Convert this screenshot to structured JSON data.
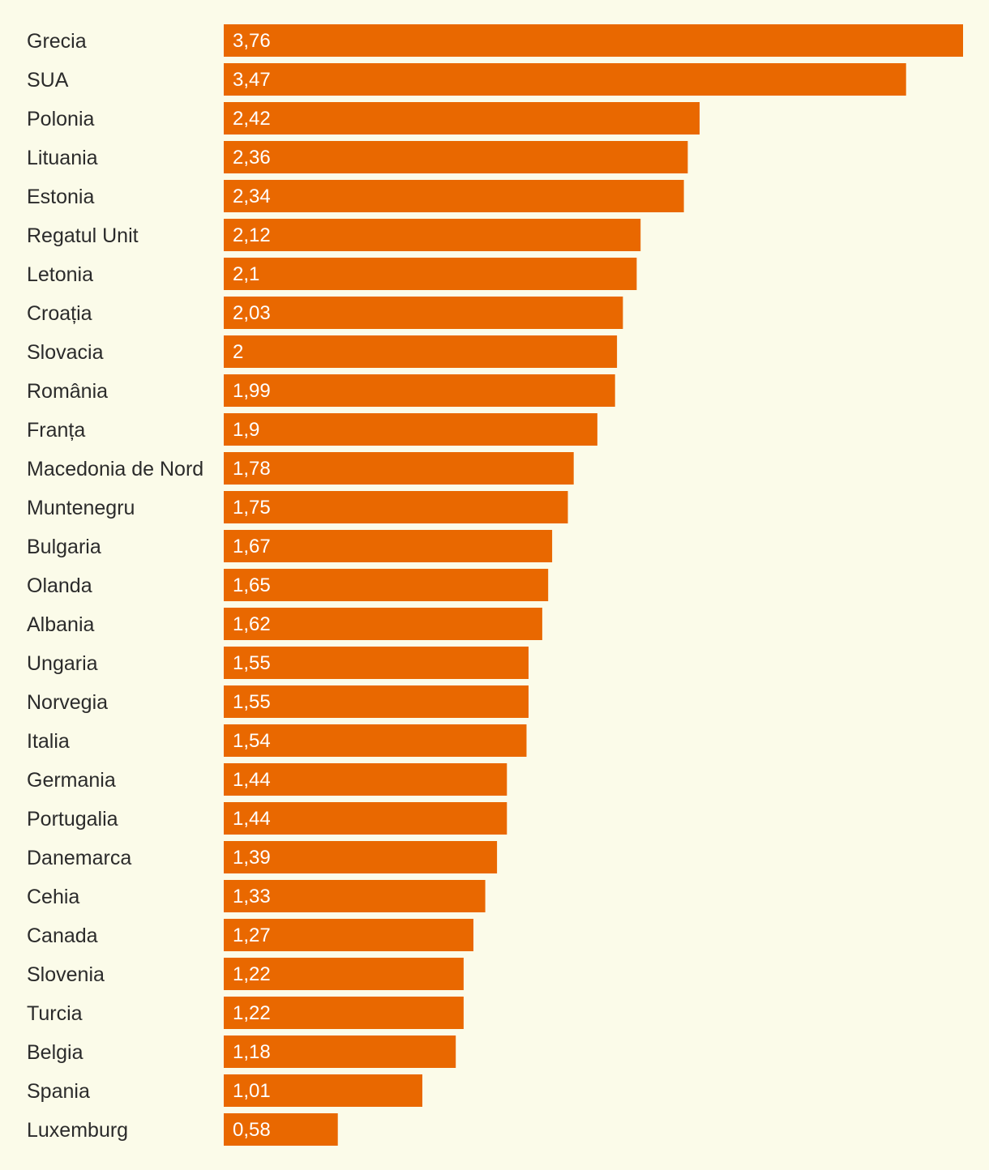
{
  "colors": {
    "background": "#fbfbe9",
    "bar": "#e96800",
    "label_text": "#2b2b2b",
    "value_text": "#ffffff"
  },
  "chart_data": {
    "type": "bar",
    "orientation": "horizontal",
    "title": "",
    "xlabel": "",
    "ylabel": "",
    "xlim": [
      0,
      3.76
    ],
    "grid": false,
    "legend": "none",
    "categories": [
      "Grecia",
      "SUA",
      "Polonia",
      "Lituania",
      "Estonia",
      "Regatul Unit",
      "Letonia",
      "Croația",
      "Slovacia",
      "România",
      "Franța",
      "Macedonia de Nord",
      "Muntenegru",
      "Bulgaria",
      "Olanda",
      "Albania",
      "Ungaria",
      "Norvegia",
      "Italia",
      "Germania",
      "Portugalia",
      "Danemarca",
      "Cehia",
      "Canada",
      "Slovenia",
      "Turcia",
      "Belgia",
      "Spania",
      "Luxemburg"
    ],
    "values": [
      3.76,
      3.47,
      2.42,
      2.36,
      2.34,
      2.12,
      2.1,
      2.03,
      2,
      1.99,
      1.9,
      1.78,
      1.75,
      1.67,
      1.65,
      1.62,
      1.55,
      1.55,
      1.54,
      1.44,
      1.44,
      1.39,
      1.33,
      1.27,
      1.22,
      1.22,
      1.18,
      1.01,
      0.58
    ],
    "value_labels": [
      "3,76",
      "3,47",
      "2,42",
      "2,36",
      "2,34",
      "2,12",
      "2,1",
      "2,03",
      "2",
      "1,99",
      "1,9",
      "1,78",
      "1,75",
      "1,67",
      "1,65",
      "1,62",
      "1,55",
      "1,55",
      "1,54",
      "1,44",
      "1,44",
      "1,39",
      "1,33",
      "1,27",
      "1,22",
      "1,22",
      "1,18",
      "1,01",
      "0,58"
    ]
  }
}
